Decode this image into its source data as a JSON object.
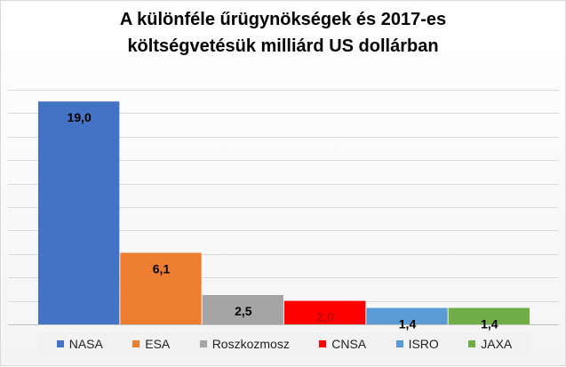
{
  "chart_data": {
    "type": "bar",
    "title_lines": [
      "A különféle űrügynökségek és 2017-es",
      "költségvetésük milliárd US dollárban"
    ],
    "categories": [
      "NASA",
      "ESA",
      "Roszkozmosz",
      "CNSA",
      "ISRO",
      "JAXA"
    ],
    "values": [
      19.0,
      6.1,
      2.5,
      2.0,
      1.4,
      1.4
    ],
    "data_labels": [
      "19,0",
      "6,1",
      "2,5",
      "2,0",
      "1,4",
      "1,4"
    ],
    "colors": [
      "#4472c4",
      "#ed7d31",
      "#a5a5a5",
      "#ff0000",
      "#5b9bd5",
      "#70ad47"
    ],
    "label_colors": [
      "#000000",
      "#000000",
      "#000000",
      "#c00000",
      "#000000",
      "#000000"
    ],
    "ylim": [
      0,
      20
    ],
    "grid": true,
    "legend_position": "bottom"
  }
}
